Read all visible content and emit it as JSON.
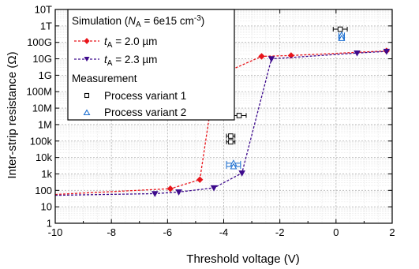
{
  "chart_data": {
    "type": "scatter",
    "xlabel": "Threshold voltage (V)",
    "ylabel": "Inter-strip resistance (Ω)",
    "xlim": [
      -10,
      2
    ],
    "ylim_log10": [
      0,
      13
    ],
    "x_scale": "linear",
    "y_scale": "log",
    "grid": true,
    "x_ticks": [
      -10,
      -8,
      -6,
      -4,
      -2,
      0,
      2
    ],
    "x_tick_labels": [
      "-10",
      "-8",
      "-6",
      "-4",
      "-2",
      "0",
      "2"
    ],
    "y_ticks_log10": [
      0,
      1,
      2,
      3,
      4,
      5,
      6,
      7,
      8,
      9,
      10,
      11,
      12,
      13
    ],
    "y_tick_labels": [
      "1",
      "10",
      "100",
      "1k",
      "10k",
      "100k",
      "1M",
      "10M",
      "100M",
      "1G",
      "10G",
      "100G",
      "1T",
      "10T"
    ],
    "legend": {
      "position": "top-left",
      "sim_header_prefix": "Simulation (",
      "sim_header_var": "N",
      "sim_header_sub": "A",
      "sim_header_mid": " = 6e15 cm",
      "sim_header_sup": "-3",
      "sim_header_suffix": ")",
      "meas_header": "Measurement"
    },
    "series": [
      {
        "name_var": "t",
        "name_sub": "A",
        "name_rest": " = 2.0 µm",
        "kind": "simulation",
        "color": "#e8141a",
        "marker": "diamond",
        "x": [
          -10,
          -5.9,
          -4.85,
          -4.3,
          -2.65,
          -1.6,
          1.8
        ],
        "y_log10": [
          1.75,
          2.1,
          2.65,
          8.9,
          10.15,
          10.2,
          10.48
        ]
      },
      {
        "name_var": "t",
        "name_sub": "A",
        "name_rest": " = 2.3 µm",
        "kind": "simulation",
        "color": "#3d0a8c",
        "marker": "triangle-down",
        "x": [
          -10,
          -6.45,
          -5.6,
          -4.35,
          -3.35,
          -2.3,
          0.75,
          1.8
        ],
        "y_log10": [
          1.7,
          1.8,
          1.9,
          2.15,
          3.05,
          10.0,
          10.35,
          10.45
        ]
      },
      {
        "name": "Process variant 1",
        "kind": "measurement",
        "color": "#000000",
        "marker": "square",
        "points": [
          {
            "x": 0.15,
            "y_log10": 11.8,
            "xerr": 0.25
          },
          {
            "x": -3.45,
            "y_log10": 6.55,
            "xerr": 0.25
          },
          {
            "x": -3.75,
            "y_log10": 5.3,
            "xerr": 0.15
          },
          {
            "x": -3.75,
            "y_log10": 4.95,
            "xerr": 0.15
          }
        ]
      },
      {
        "name": "Process variant 2",
        "kind": "measurement",
        "color": "#1c6fd0",
        "marker": "triangle-up",
        "points": [
          {
            "x": 0.2,
            "y_log10": 11.45,
            "xerr": 0.1
          },
          {
            "x": 0.2,
            "y_log10": 11.25,
            "xerr": 0.1
          },
          {
            "x": -3.65,
            "y_log10": 3.65,
            "xerr": 0.25
          },
          {
            "x": -3.65,
            "y_log10": 3.45,
            "xerr": 0.25
          }
        ]
      }
    ]
  }
}
